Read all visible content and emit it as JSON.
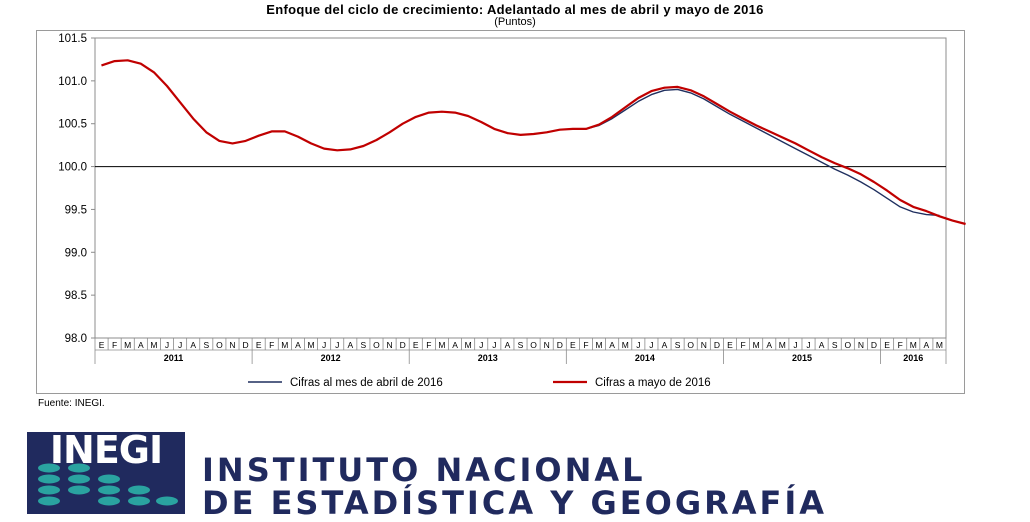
{
  "chart_data": {
    "type": "line",
    "title": "Enfoque del ciclo de crecimiento: Adelantado al mes de abril y mayo de 2016",
    "subtitle": "(Puntos)",
    "ylim": [
      98.0,
      101.5
    ],
    "yticks": [
      "101.5",
      "101.0",
      "100.5",
      "100.0",
      "99.5",
      "99.0",
      "98.5",
      "98.0"
    ],
    "reference_line": 100.0,
    "month_labels": [
      "E",
      "F",
      "M",
      "A",
      "M",
      "J",
      "J",
      "A",
      "S",
      "O",
      "N",
      "D"
    ],
    "years": [
      "2011",
      "2012",
      "2013",
      "2014",
      "2015",
      "2016"
    ],
    "x_start": "2011-01",
    "legend_position": "bottom",
    "series": [
      {
        "name": "Cifras al mes de abril de 2016",
        "color": "#1f2f5f",
        "values": [
          101.18,
          101.23,
          101.24,
          101.2,
          101.1,
          100.94,
          100.75,
          100.56,
          100.4,
          100.3,
          100.27,
          100.3,
          100.36,
          100.41,
          100.41,
          100.35,
          100.27,
          100.21,
          100.19,
          100.2,
          100.24,
          100.31,
          100.4,
          100.5,
          100.58,
          100.63,
          100.64,
          100.63,
          100.59,
          100.52,
          100.44,
          100.39,
          100.37,
          100.38,
          100.4,
          100.43,
          100.44,
          100.44,
          100.48,
          100.56,
          100.66,
          100.76,
          100.84,
          100.89,
          100.9,
          100.86,
          100.79,
          100.7,
          100.61,
          100.53,
          100.45,
          100.37,
          100.29,
          100.21,
          100.13,
          100.05,
          99.97,
          99.9,
          99.82,
          99.73,
          99.63,
          99.53,
          99.47,
          99.44,
          99.43
        ]
      },
      {
        "name": "Cifras a mayo de 2016",
        "color": "#c00000",
        "values": [
          101.18,
          101.23,
          101.24,
          101.2,
          101.1,
          100.94,
          100.75,
          100.56,
          100.4,
          100.3,
          100.27,
          100.3,
          100.36,
          100.41,
          100.41,
          100.35,
          100.27,
          100.21,
          100.19,
          100.2,
          100.24,
          100.31,
          100.4,
          100.5,
          100.58,
          100.63,
          100.64,
          100.63,
          100.59,
          100.52,
          100.44,
          100.39,
          100.37,
          100.38,
          100.4,
          100.43,
          100.44,
          100.44,
          100.49,
          100.58,
          100.69,
          100.8,
          100.88,
          100.92,
          100.93,
          100.89,
          100.82,
          100.73,
          100.64,
          100.56,
          100.48,
          100.41,
          100.34,
          100.27,
          100.19,
          100.11,
          100.04,
          99.98,
          99.91,
          99.82,
          99.72,
          99.61,
          99.53,
          99.48,
          99.42,
          99.37,
          99.33
        ]
      }
    ]
  },
  "source": "Fuente: INEGI.",
  "logo": {
    "acronym": "INEGI",
    "line1": "INSTITUTO NACIONAL",
    "line2": "DE ESTADÍSTICA Y GEOGRAFÍA",
    "color": "#202a5e",
    "accent": "#2aa3a0"
  }
}
